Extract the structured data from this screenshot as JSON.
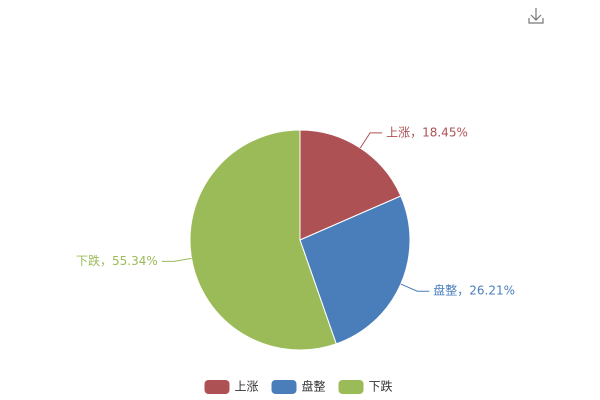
{
  "chart_data": {
    "type": "pie",
    "categories": [
      "上涨",
      "盘整",
      "下跌"
    ],
    "values": [
      18.45,
      26.21,
      55.34
    ],
    "value_labels": [
      "上涨，18.45%",
      "盘整，26.21%",
      "下跌，55.34%"
    ],
    "colors": [
      "#ae5155",
      "#4a7ebb",
      "#9bbb59"
    ],
    "legend": "bottom"
  }
}
